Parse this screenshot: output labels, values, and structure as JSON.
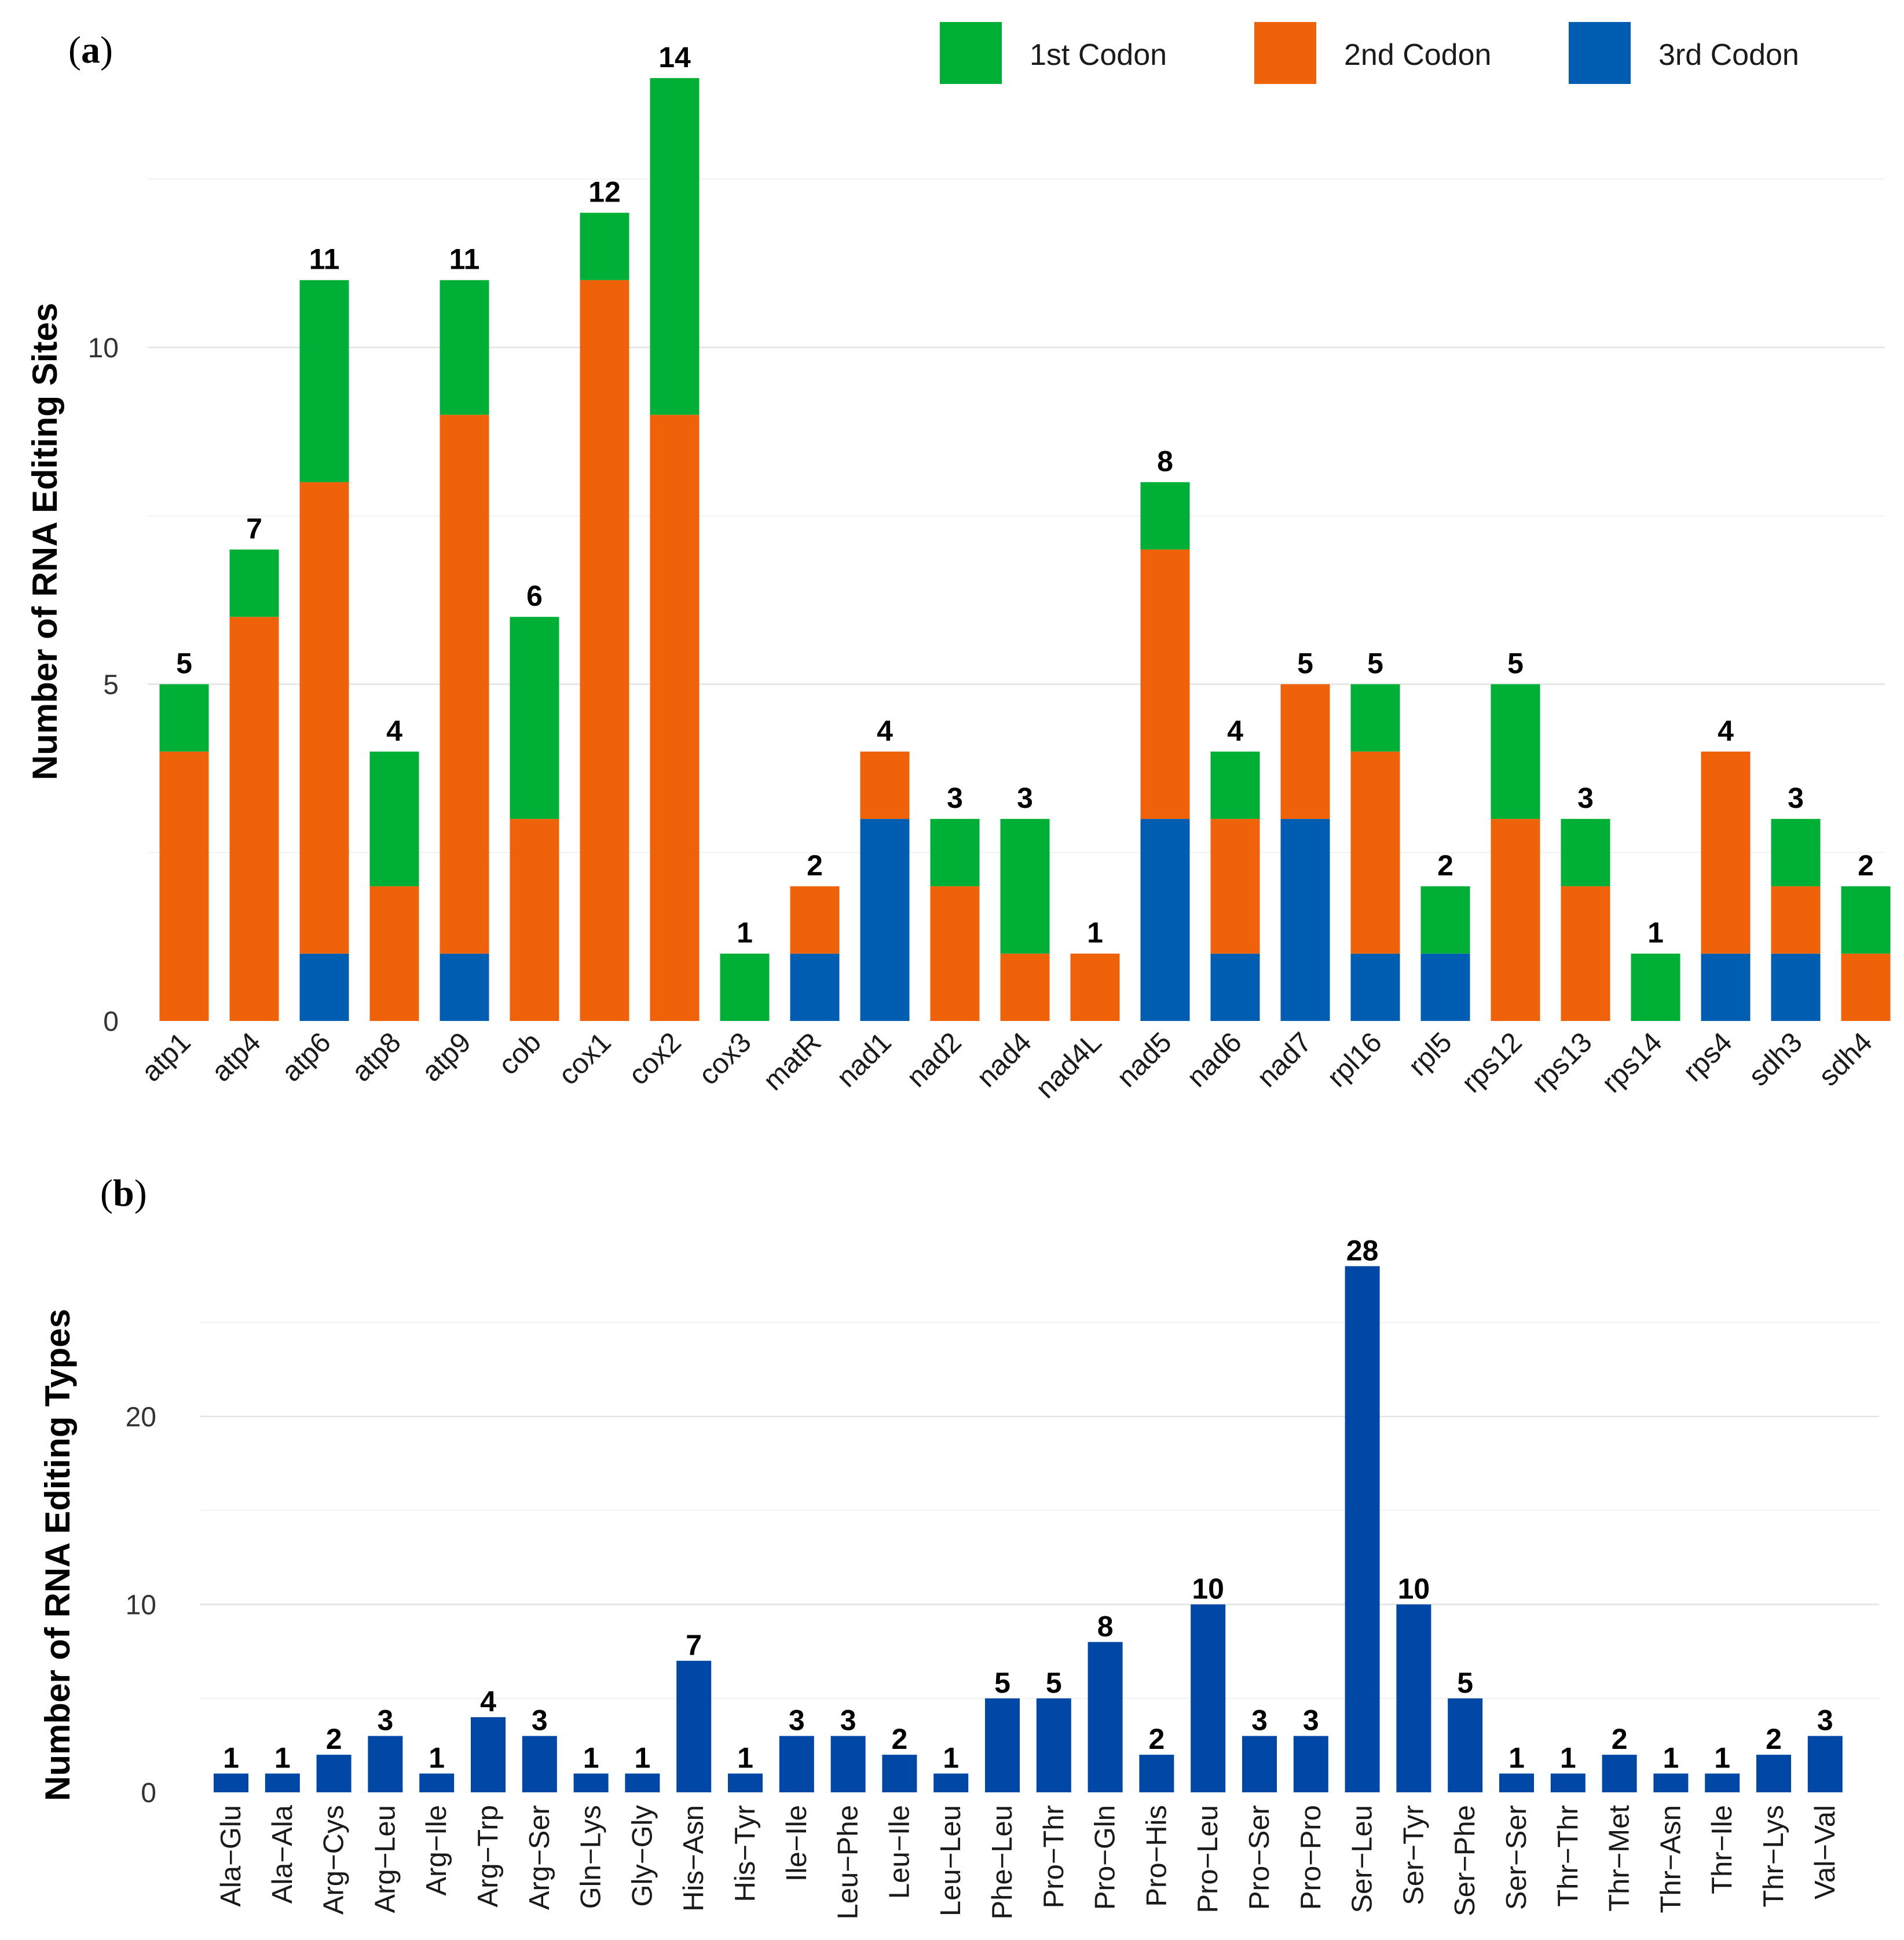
{
  "colors": {
    "first": "#00b036",
    "second": "#f0620a",
    "third": "#005db1",
    "bars_b": "#0047a6"
  },
  "panel_a": {
    "open_paren": "(",
    "letter": "a",
    "close_paren": ")"
  },
  "panel_b": {
    "open_paren": "(",
    "letter": "b",
    "close_paren": ")"
  },
  "legend": {
    "items": [
      {
        "label": "1st Codon",
        "color_key": "first"
      },
      {
        "label": "2nd Codon",
        "color_key": "second"
      },
      {
        "label": "3rd Codon",
        "color_key": "third"
      }
    ]
  },
  "chart_data": [
    {
      "type": "bar",
      "stacked": true,
      "title": "",
      "xlabel": "",
      "ylabel": "Number of RNA Editing Sites",
      "ylim": [
        0,
        14.5
      ],
      "yticks": [
        0,
        5,
        10
      ],
      "categories": [
        "atp1",
        "atp4",
        "atp6",
        "atp8",
        "atp9",
        "cob",
        "cox1",
        "cox2",
        "cox3",
        "matR",
        "nad1",
        "nad2",
        "nad4",
        "nad4L",
        "nad5",
        "nad6",
        "nad7",
        "rpl16",
        "rpl5",
        "rps12",
        "rps13",
        "rps14",
        "rps4",
        "sdh3",
        "sdh4"
      ],
      "series": [
        {
          "name": "3rd Codon",
          "values": [
            0,
            0,
            1,
            0,
            1,
            0,
            0,
            0,
            0,
            1,
            3,
            0,
            0,
            0,
            3,
            1,
            3,
            1,
            1,
            0,
            0,
            0,
            1,
            1,
            0
          ]
        },
        {
          "name": "2nd Codon",
          "values": [
            4,
            6,
            7,
            2,
            8,
            3,
            11,
            9,
            0,
            1,
            1,
            2,
            1,
            1,
            4,
            2,
            2,
            3,
            0,
            3,
            2,
            0,
            3,
            1,
            1
          ]
        },
        {
          "name": "1st Codon",
          "values": [
            1,
            1,
            3,
            2,
            2,
            3,
            1,
            5,
            1,
            0,
            0,
            1,
            2,
            0,
            1,
            1,
            0,
            1,
            1,
            2,
            1,
            1,
            0,
            1,
            1
          ]
        }
      ],
      "totals": [
        5,
        7,
        11,
        4,
        11,
        6,
        12,
        14,
        1,
        2,
        4,
        3,
        3,
        1,
        8,
        4,
        5,
        5,
        2,
        5,
        3,
        1,
        4,
        3,
        2
      ]
    },
    {
      "type": "bar",
      "title": "",
      "xlabel": "",
      "ylabel": "Number of RNA Editing Types",
      "ylim": [
        0,
        28.5
      ],
      "yticks": [
        0,
        10,
        20
      ],
      "categories": [
        "Ala−Glu",
        "Ala−Ala",
        "Arg−Cys",
        "Arg−Leu",
        "Arg−Ile",
        "Arg−Trp",
        "Arg−Ser",
        "Gln−Lys",
        "Gly−Gly",
        "His−Asn",
        "His−Tyr",
        "Ile−Ile",
        "Leu−Phe",
        "Leu−Ile",
        "Leu−Leu",
        "Phe−Leu",
        "Pro−Thr",
        "Pro−Gln",
        "Pro−His",
        "Pro−Leu",
        "Pro−Ser",
        "Pro−Pro",
        "Ser−Leu",
        "Ser−Tyr",
        "Ser−Phe",
        "Ser−Ser",
        "Thr−Thr",
        "Thr−Met",
        "Thr−Asn",
        "Thr−Ile",
        "Thr−Lys",
        "Val−Val"
      ],
      "values": [
        1,
        1,
        2,
        3,
        1,
        4,
        3,
        1,
        1,
        7,
        1,
        3,
        3,
        2,
        1,
        5,
        5,
        8,
        2,
        10,
        3,
        3,
        28,
        10,
        5,
        1,
        1,
        2,
        1,
        1,
        2,
        3
      ]
    }
  ]
}
